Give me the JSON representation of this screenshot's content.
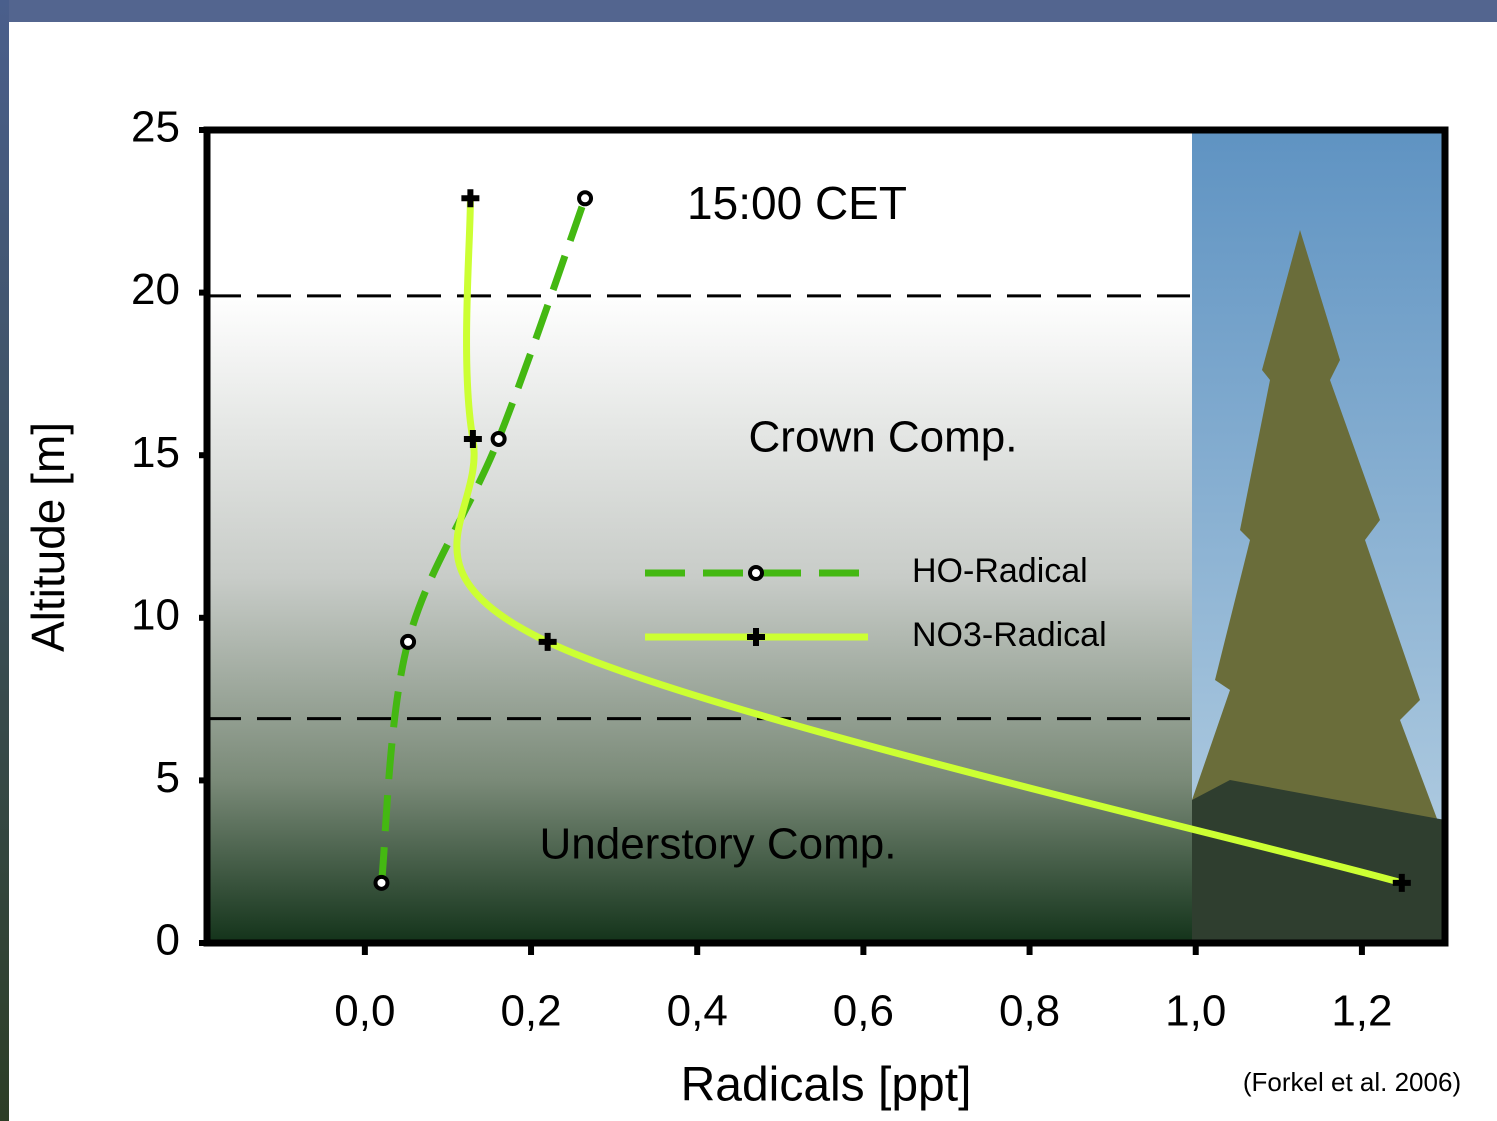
{
  "chart_data": {
    "type": "line",
    "annotations": [
      "15:00 CET",
      "Crown Comp.",
      "Understory Comp."
    ],
    "source": "(Forkel et al. 2006)",
    "xlabel": "Radicals [ppt]",
    "ylabel": "Altitude [m]",
    "xlim": [
      -0.19,
      1.3
    ],
    "ylim": [
      0,
      25
    ],
    "xticks": [
      {
        "value": 0,
        "label": "0,0"
      },
      {
        "value": 0.2,
        "label": "0,2"
      },
      {
        "value": 0.4,
        "label": "0,4"
      },
      {
        "value": 0.6,
        "label": "0,6"
      },
      {
        "value": 0.8,
        "label": "0,8"
      },
      {
        "value": 1.0,
        "label": "1,0"
      },
      {
        "value": 1.2,
        "label": "1,2"
      }
    ],
    "yticks": [
      0,
      5,
      10,
      15,
      20,
      25
    ],
    "hlines": [
      19.9,
      6.9
    ],
    "series": [
      {
        "name": "HO-Radical",
        "color": "#44b812",
        "dashed": true,
        "x": [
          0.02,
          0.052,
          0.161,
          0.265
        ],
        "y": [
          1.85,
          9.26,
          15.5,
          22.9
        ]
      },
      {
        "name": "NO3-Radical",
        "color": "#ccff33",
        "dashed": false,
        "x": [
          1.248,
          0.22,
          0.13,
          0.127
        ],
        "y": [
          1.85,
          9.26,
          15.5,
          22.9
        ]
      }
    ]
  }
}
